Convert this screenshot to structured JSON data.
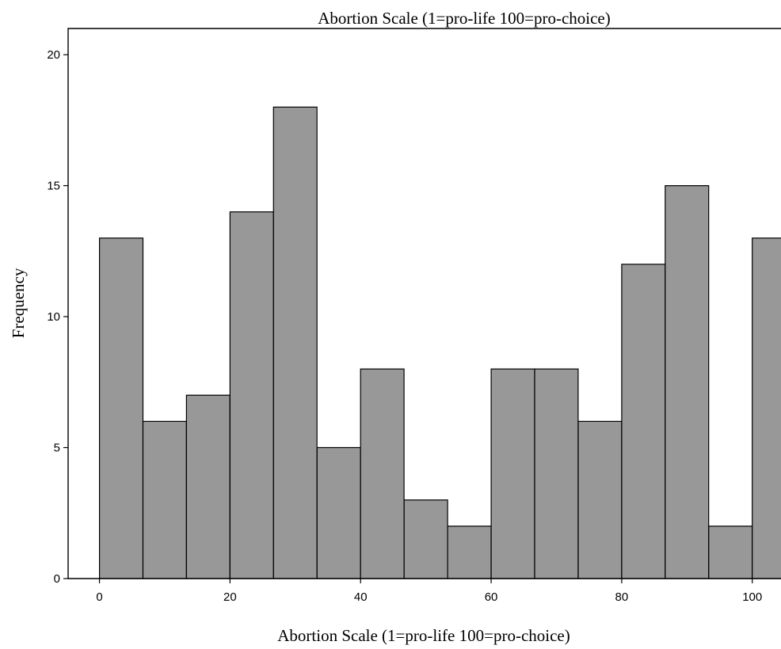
{
  "chart_data": {
    "type": "bar",
    "subtype": "histogram",
    "title": "Abortion Scale (1=pro-life 100=pro-choice)",
    "xlabel": "Abortion Scale (1=pro-life 100=pro-choice)",
    "ylabel": "Frequency",
    "bin_width": 6.667,
    "bins": [
      {
        "start": 0.0,
        "end": 6.667,
        "frequency": 13
      },
      {
        "start": 6.667,
        "end": 13.333,
        "frequency": 6
      },
      {
        "start": 13.333,
        "end": 20.0,
        "frequency": 7
      },
      {
        "start": 20.0,
        "end": 26.667,
        "frequency": 14
      },
      {
        "start": 26.667,
        "end": 33.333,
        "frequency": 18
      },
      {
        "start": 33.333,
        "end": 40.0,
        "frequency": 5
      },
      {
        "start": 40.0,
        "end": 46.667,
        "frequency": 8
      },
      {
        "start": 46.667,
        "end": 53.333,
        "frequency": 3
      },
      {
        "start": 53.333,
        "end": 60.0,
        "frequency": 2
      },
      {
        "start": 60.0,
        "end": 66.667,
        "frequency": 8
      },
      {
        "start": 66.667,
        "end": 73.333,
        "frequency": 8
      },
      {
        "start": 73.333,
        "end": 80.0,
        "frequency": 6
      },
      {
        "start": 80.0,
        "end": 86.667,
        "frequency": 12
      },
      {
        "start": 86.667,
        "end": 93.333,
        "frequency": 15
      },
      {
        "start": 93.333,
        "end": 100.0,
        "frequency": 2
      },
      {
        "start": 100.0,
        "end": 106.667,
        "frequency": 13
      }
    ],
    "x_ticks": [
      "0",
      "20",
      "40",
      "60",
      "80",
      "100"
    ],
    "y_ticks": [
      "0",
      "5",
      "10",
      "15",
      "20"
    ],
    "xlim": [
      -4.8,
      104.4
    ],
    "ylim": [
      0,
      21
    ],
    "grid": false,
    "legend": "none",
    "bar_color": "#989898",
    "bar_edge_color": "#000000"
  }
}
